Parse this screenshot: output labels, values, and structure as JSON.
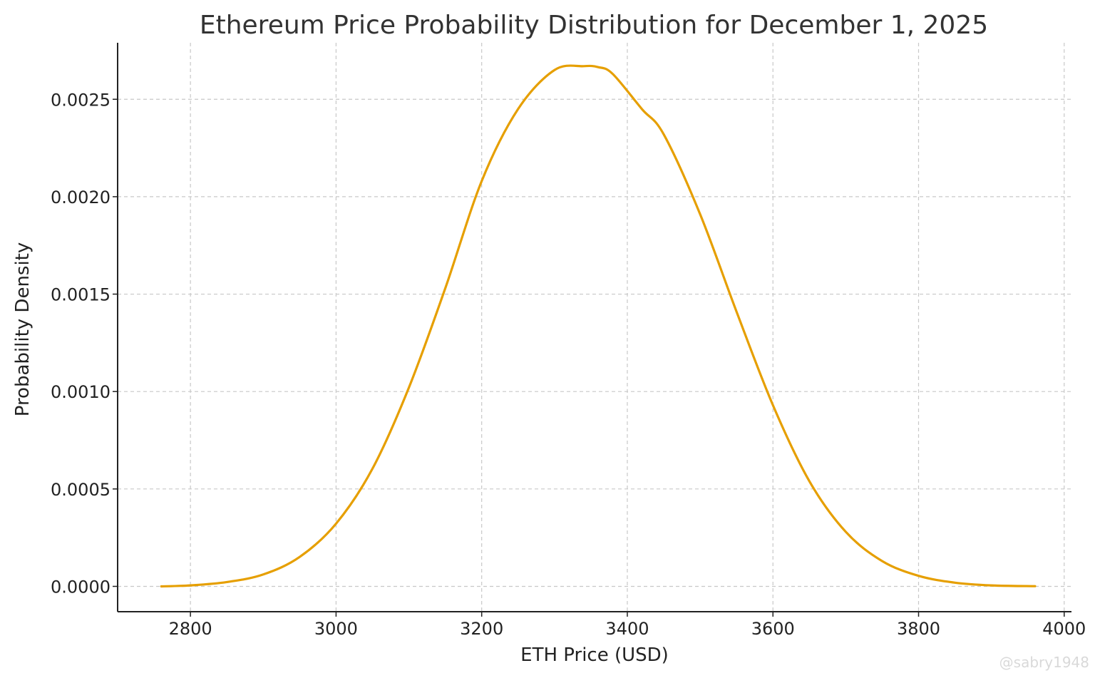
{
  "chart_data": {
    "type": "line",
    "title": "Ethereum Price Probability Distribution for December 1, 2025",
    "xlabel": "ETH Price (USD)",
    "ylabel": "Probability Density",
    "xlim": [
      2700,
      4010
    ],
    "ylim": [
      -0.00013,
      0.00279
    ],
    "x_ticks": [
      2800,
      3000,
      3200,
      3400,
      3600,
      3800,
      4000
    ],
    "x_tick_labels": [
      "2800",
      "3000",
      "3200",
      "3400",
      "3600",
      "3800",
      "4000"
    ],
    "y_ticks": [
      0.0,
      0.0005,
      0.001,
      0.0015,
      0.002,
      0.0025
    ],
    "y_tick_labels": [
      "0.0000",
      "0.0005",
      "0.0010",
      "0.0015",
      "0.0020",
      "0.0025"
    ],
    "grid": true,
    "series": [
      {
        "color": "#E69F00",
        "x": [
          2760,
          2800,
          2850,
          2900,
          2950,
          3000,
          3050,
          3100,
          3150,
          3200,
          3250,
          3300,
          3340,
          3360,
          3380,
          3420,
          3450,
          3500,
          3550,
          3600,
          3650,
          3700,
          3750,
          3800,
          3850,
          3900,
          3960
        ],
        "y": [
          0.0,
          5e-06,
          2.2e-05,
          6.1e-05,
          0.000151,
          0.000322,
          0.000604,
          0.00102,
          0.00153,
          0.00208,
          0.00245,
          0.00265,
          0.00267,
          0.002665,
          0.00263,
          0.00245,
          0.00232,
          0.00191,
          0.00141,
          0.00093,
          0.00054,
          0.00028,
          0.00013,
          5.4e-05,
          1.9e-05,
          5e-06,
          1e-06
        ]
      }
    ]
  },
  "watermark": "@sabry1948"
}
